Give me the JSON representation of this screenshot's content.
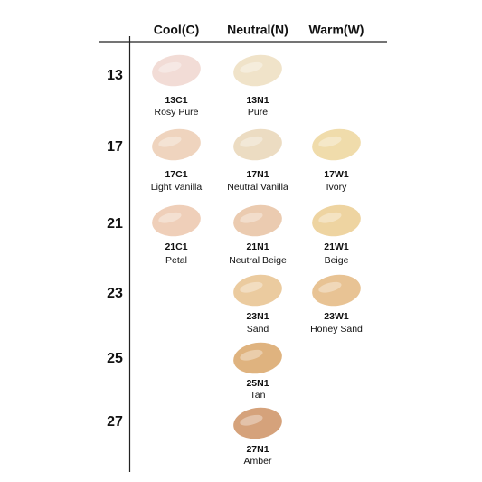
{
  "header": {
    "columns": [
      "Cool(C)",
      "Neutral(N)",
      "Warm(W)"
    ]
  },
  "rows": [
    {
      "label": "13",
      "cells": [
        {
          "code": "13C1",
          "name": "Rosy Pure",
          "color": "#f2dcd6"
        },
        {
          "code": "13N1",
          "name": "Pure",
          "color": "#f0e3c9"
        },
        null
      ]
    },
    {
      "label": "17",
      "cells": [
        {
          "code": "17C1",
          "name": "Light Vanilla",
          "color": "#efd4be"
        },
        {
          "code": "17N1",
          "name": "Neutral Vanilla",
          "color": "#ecdcc2"
        },
        {
          "code": "17W1",
          "name": "Ivory",
          "color": "#f0dcab"
        }
      ]
    },
    {
      "label": "21",
      "cells": [
        {
          "code": "21C1",
          "name": "Petal",
          "color": "#efcfb9"
        },
        {
          "code": "21N1",
          "name": "Neutral Beige",
          "color": "#ebcbb0"
        },
        {
          "code": "21W1",
          "name": "Beige",
          "color": "#eed4a1"
        }
      ]
    },
    {
      "label": "23",
      "cells": [
        null,
        {
          "code": "23N1",
          "name": "Sand",
          "color": "#ebcb9f"
        },
        {
          "code": "23W1",
          "name": "Honey Sand",
          "color": "#e8c394"
        }
      ]
    },
    {
      "label": "25",
      "cells": [
        null,
        {
          "code": "25N1",
          "name": "Tan",
          "color": "#dfb37f"
        },
        null
      ]
    },
    {
      "label": "27",
      "cells": [
        null,
        {
          "code": "27N1",
          "name": "Amber",
          "color": "#d5a27b"
        },
        null
      ]
    }
  ]
}
